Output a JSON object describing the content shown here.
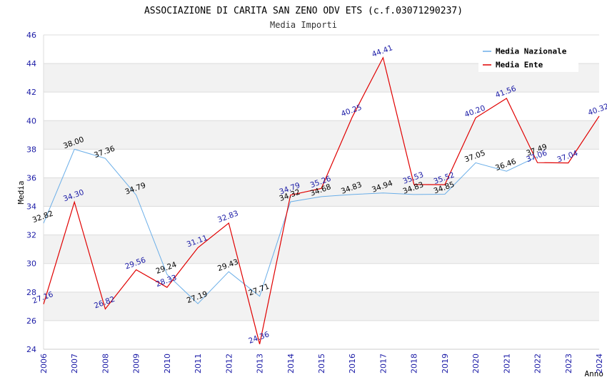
{
  "chart_data": {
    "type": "line",
    "title": "ASSOCIAZIONE DI CARITA SAN ZENO ODV ETS (c.f.03071290237)",
    "subtitle": "Media Importi",
    "xlabel": "Anno",
    "ylabel": "Media",
    "ylim": [
      24,
      46
    ],
    "yticks": [
      24,
      26,
      28,
      30,
      32,
      34,
      36,
      38,
      40,
      42,
      44,
      46
    ],
    "ytick_labels": [
      "24",
      "26",
      "28",
      "30",
      "32",
      "34",
      "36",
      "38",
      "40",
      "42",
      "44",
      "46"
    ],
    "x": [
      "2006",
      "2007",
      "2008",
      "2009",
      "2010",
      "2011",
      "2012",
      "2013",
      "2014",
      "2015",
      "2016",
      "2017",
      "2018",
      "2019",
      "2020",
      "2021",
      "2022",
      "2023",
      "2024"
    ],
    "grid": true,
    "legend_position": "top-right",
    "series": [
      {
        "name": "Media Nazionale",
        "color": "#6aaee8",
        "label_color": "#000000",
        "values": [
          32.82,
          38.0,
          37.36,
          34.79,
          29.24,
          27.19,
          29.43,
          27.71,
          34.32,
          34.68,
          34.83,
          34.94,
          34.83,
          34.85,
          37.05,
          36.46,
          37.49,
          null,
          null
        ],
        "labels": [
          "32.82",
          "38.00",
          "37.36",
          "34.79",
          "29.24",
          "27.19",
          "29.43",
          "27.71",
          "34.32",
          "34.68",
          "34.83",
          "34.94",
          "34.83",
          "34.85",
          "37.05",
          "36.46",
          "37.49",
          "",
          ""
        ]
      },
      {
        "name": "Media Ente",
        "color": "#e00000",
        "label_color": "#1a1aa6",
        "values": [
          27.16,
          34.3,
          26.82,
          29.56,
          28.33,
          31.11,
          32.83,
          24.36,
          34.79,
          35.26,
          40.25,
          44.41,
          35.53,
          35.52,
          40.2,
          41.56,
          37.06,
          37.04,
          40.32
        ],
        "labels": [
          "27.16",
          "34.30",
          "26.82",
          "29.56",
          "28.33",
          "31.11",
          "32.83",
          "24.36",
          "34.79",
          "35.26",
          "40.25",
          "44.41",
          "35.53",
          "35.52",
          "40.20",
          "41.56",
          "37.06",
          "37.04",
          "40.32"
        ]
      }
    ]
  }
}
